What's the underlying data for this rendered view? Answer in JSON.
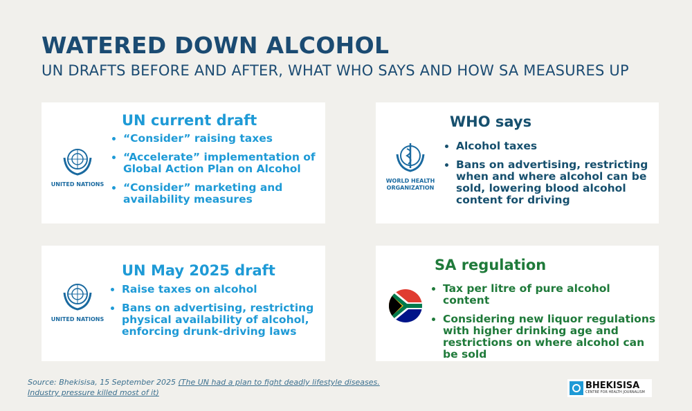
{
  "header": {
    "title": "WATERED DOWN ALCOHOL",
    "subtitle": "UN DRAFTS BEFORE AND AFTER, WHAT WHO SAYS AND HOW SA MEASURES UP"
  },
  "cards": [
    {
      "title": "UN current draft",
      "logo_caption": "UNITED NATIONS",
      "bullets": [
        "“Consider” raising taxes",
        "“Accelerate” implementation of Global Action Plan on Alcohol",
        "“Consider” marketing and availability measures"
      ]
    },
    {
      "title": "WHO says",
      "logo_caption": "WORLD HEALTH ORGANIZATION",
      "bullets": [
        "Alcohol taxes",
        "Bans on advertising, restricting when and where alcohol can be sold, lowering blood alcohol content for driving"
      ]
    },
    {
      "title": "UN May 2025 draft",
      "logo_caption": "UNITED NATIONS",
      "bullets": [
        "Raise taxes on alcohol",
        "Bans on advertising, restricting physical availability of alcohol, enforcing drunk-driving laws"
      ]
    },
    {
      "title": "SA regulation",
      "bullets": [
        "Tax per litre of pure alcohol content",
        "Considering new liquor regulations with higher drinking age and restrictions on where alcohol can be sold"
      ]
    }
  ],
  "source": {
    "text": "Source: Bhekisisa, 15 September 2025",
    "link": "(The UN had a plan to fight deadly lifestyle diseases. Industry pressure killed most of it)"
  },
  "brand": {
    "name": "BHEKISISA",
    "tagline": "CENTRE FOR HEALTH JOURNALISM"
  }
}
